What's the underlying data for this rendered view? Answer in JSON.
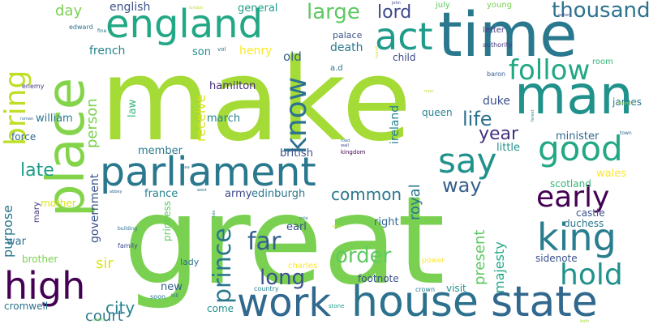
{
  "word_cloud": {
    "words": [
      {
        "text": "great",
        "color": "#7ad151"
      },
      {
        "text": "make",
        "color": "#a5db36"
      },
      {
        "text": "time",
        "color": "#2a788e"
      },
      {
        "text": "man",
        "color": "#21918c"
      },
      {
        "text": "place",
        "color": "#84d44b"
      },
      {
        "text": "house",
        "color": "#2c728e"
      },
      {
        "text": "state",
        "color": "#31688e"
      },
      {
        "text": "work",
        "color": "#31688e"
      },
      {
        "text": "parliament",
        "color": "#2a788e"
      },
      {
        "text": "england",
        "color": "#22a884"
      },
      {
        "text": "act",
        "color": "#1e9b8a"
      },
      {
        "text": "king",
        "color": "#287d8e"
      },
      {
        "text": "good",
        "color": "#22a884"
      },
      {
        "text": "high",
        "color": "#440154"
      },
      {
        "text": "say",
        "color": "#21918c"
      },
      {
        "text": "follow",
        "color": "#22a884"
      },
      {
        "text": "bring",
        "color": "#bddf26"
      },
      {
        "text": "early",
        "color": "#440154"
      },
      {
        "text": "hold",
        "color": "#21918c"
      },
      {
        "text": "know",
        "color": "#2c728e"
      },
      {
        "text": "large",
        "color": "#5ec962"
      },
      {
        "text": "thousand",
        "color": "#2c728e"
      },
      {
        "text": "far",
        "color": "#355f8d"
      },
      {
        "text": "prince",
        "color": "#2a788e"
      },
      {
        "text": "long",
        "color": "#3b528b"
      },
      {
        "text": "order",
        "color": "#5ec962"
      },
      {
        "text": "common",
        "color": "#2a788e"
      },
      {
        "text": "way",
        "color": "#355f8d"
      },
      {
        "text": "life",
        "color": "#2c728e"
      },
      {
        "text": "lord",
        "color": "#3e4a89"
      },
      {
        "text": "year",
        "color": "#46327e"
      },
      {
        "text": "late",
        "color": "#1f9e89"
      },
      {
        "text": "city",
        "color": "#26828e"
      },
      {
        "text": "court",
        "color": "#2a788e"
      },
      {
        "text": "purpose",
        "color": "#2a788e"
      },
      {
        "text": "person",
        "color": "#7ad151"
      },
      {
        "text": "present",
        "color": "#5ec962"
      },
      {
        "text": "majesty",
        "color": "#22a884"
      },
      {
        "text": "receive",
        "color": "#dde318"
      },
      {
        "text": "day",
        "color": "#7ad151"
      },
      {
        "text": "sir",
        "color": "#dde318"
      },
      {
        "text": "government",
        "color": "#3b528b"
      },
      {
        "text": "royal",
        "color": "#2a788e"
      },
      {
        "text": "ireland",
        "color": "#26828e"
      },
      {
        "text": "english",
        "color": "#3b528b"
      },
      {
        "text": "general",
        "color": "#1f9e89"
      },
      {
        "text": "french",
        "color": "#26828e"
      },
      {
        "text": "henry",
        "color": "#fde725"
      },
      {
        "text": "son",
        "color": "#21918c"
      },
      {
        "text": "old",
        "color": "#355f8d"
      },
      {
        "text": "death",
        "color": "#2a788e"
      },
      {
        "text": "palace",
        "color": "#3b528b"
      },
      {
        "text": "child",
        "color": "#3e4a89"
      },
      {
        "text": "hamilton",
        "color": "#472d7b"
      },
      {
        "text": "william",
        "color": "#2a788e"
      },
      {
        "text": "march",
        "color": "#26828e"
      },
      {
        "text": "law",
        "color": "#35b779"
      },
      {
        "text": "queen",
        "color": "#26828e"
      },
      {
        "text": "duke",
        "color": "#3b528b"
      },
      {
        "text": "minister",
        "color": "#31688e"
      },
      {
        "text": "little",
        "color": "#21918c"
      },
      {
        "text": "member",
        "color": "#2a788e"
      },
      {
        "text": "british",
        "color": "#3b528b"
      },
      {
        "text": "force",
        "color": "#31688e"
      },
      {
        "text": "scotland",
        "color": "#35b779"
      },
      {
        "text": "wales",
        "color": "#fde725"
      },
      {
        "text": "castle",
        "color": "#3b528b"
      },
      {
        "text": "duchess",
        "color": "#2a788e"
      },
      {
        "text": "france",
        "color": "#26828e"
      },
      {
        "text": "army",
        "color": "#3e4a89"
      },
      {
        "text": "edinburgh",
        "color": "#2a788e"
      },
      {
        "text": "right",
        "color": "#31688e"
      },
      {
        "text": "earl",
        "color": "#3b528b"
      },
      {
        "text": "war",
        "color": "#2c728e"
      },
      {
        "text": "mother",
        "color": "#dde318"
      },
      {
        "text": "brother",
        "color": "#7ad151"
      },
      {
        "text": "princess",
        "color": "#5ec962"
      },
      {
        "text": "charles",
        "color": "#fde725"
      },
      {
        "text": "lady",
        "color": "#2c728e"
      },
      {
        "text": "new",
        "color": "#355f8d"
      },
      {
        "text": "sidenote",
        "color": "#3b528b"
      },
      {
        "text": "footnote",
        "color": "#3b528b"
      },
      {
        "text": "visit",
        "color": "#21918c"
      },
      {
        "text": "come",
        "color": "#21918c"
      },
      {
        "text": "cromwell",
        "color": "#2c728e"
      },
      {
        "text": "james",
        "color": "#2a788e"
      },
      {
        "text": "room",
        "color": "#35b779"
      },
      {
        "text": "letter",
        "color": "#443983"
      },
      {
        "text": "authority",
        "color": "#443983"
      },
      {
        "text": "july",
        "color": "#5ec962"
      },
      {
        "text": "young",
        "color": "#7ad151"
      },
      {
        "text": "baron",
        "color": "#355f8d"
      },
      {
        "text": "a.d",
        "color": "#2c728e"
      },
      {
        "text": "mary",
        "color": "#46327e"
      },
      {
        "text": "family",
        "color": "#3e4a89"
      },
      {
        "text": "power",
        "color": "#fde725"
      },
      {
        "text": "country",
        "color": "#26828e"
      },
      {
        "text": "soon",
        "color": "#2a788e"
      },
      {
        "text": "crown",
        "color": "#287d8e"
      },
      {
        "text": "enemy",
        "color": "#443983"
      },
      {
        "text": "edward",
        "color": "#2c728e"
      },
      {
        "text": "kingdom",
        "color": "#440154"
      },
      {
        "text": "vol",
        "color": "#2a788e"
      },
      {
        "text": "fine",
        "color": "#2c728e"
      },
      {
        "text": "building",
        "color": "#2c728e"
      },
      {
        "text": "stone",
        "color": "#1f9e89"
      },
      {
        "text": "hill",
        "color": "#2c728e"
      },
      {
        "text": "town",
        "color": "#31688e"
      },
      {
        "text": "road",
        "color": "#2c728e"
      },
      {
        "text": "wall",
        "color": "#3e4a89"
      },
      {
        "text": "mile",
        "color": "#2a788e"
      },
      {
        "text": "abbey",
        "color": "#31688e"
      },
      {
        "text": "west",
        "color": "#2a788e"
      },
      {
        "text": "john",
        "color": "#3e4a89"
      },
      {
        "text": "london",
        "color": "#b8de29"
      },
      {
        "text": "water",
        "color": "#3e4a89"
      },
      {
        "text": "river",
        "color": "#b8de29"
      },
      {
        "text": "church",
        "color": "#b8de29"
      },
      {
        "text": "forest",
        "color": "#26828e"
      },
      {
        "text": "sea",
        "color": "#2a788e"
      },
      {
        "text": "isle",
        "color": "#2a788e"
      },
      {
        "text": "island",
        "color": "#dde318"
      },
      {
        "text": "lake",
        "color": "#bddf26"
      },
      {
        "text": "roman",
        "color": "#31688e"
      },
      {
        "text": "valley",
        "color": "#7ad151"
      },
      {
        "text": "bath",
        "color": "#a5db36"
      }
    ]
  }
}
